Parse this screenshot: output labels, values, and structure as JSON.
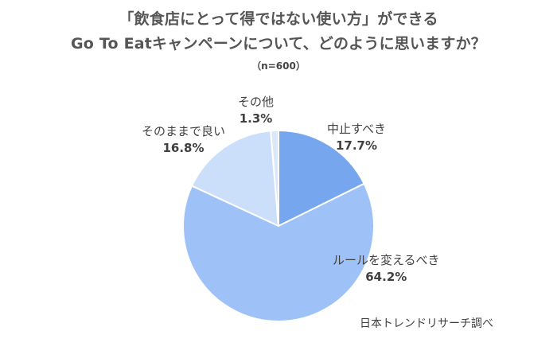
{
  "title_line1": "「飲食店にとって得ではない使い方」ができる",
  "title_line2": "Go To Eatキャンペーンについて、どのように思いますか？",
  "subtitle": "（n=600）",
  "source": "日本トレンドリサーチ調べ",
  "chart_data": {
    "type": "pie",
    "title": "「飲食店にとって得ではない使い方」ができる Go To Eatキャンペーンについて、どのように思いますか？",
    "sample_size": "n=600",
    "start": "12 o'clock",
    "direction": "clockwise",
    "slices": [
      {
        "label": "中止すべき",
        "value": 17.7,
        "display": "17.7%",
        "color": "#76a7ee"
      },
      {
        "label": "ルールを変えるべき",
        "value": 64.2,
        "display": "64.2%",
        "color": "#9ec2f7"
      },
      {
        "label": "そのままで良い",
        "value": 16.8,
        "display": "16.8%",
        "color": "#cbdffb"
      },
      {
        "label": "その他",
        "value": 1.3,
        "display": "1.3%",
        "color": "#dbe8fa"
      }
    ]
  }
}
